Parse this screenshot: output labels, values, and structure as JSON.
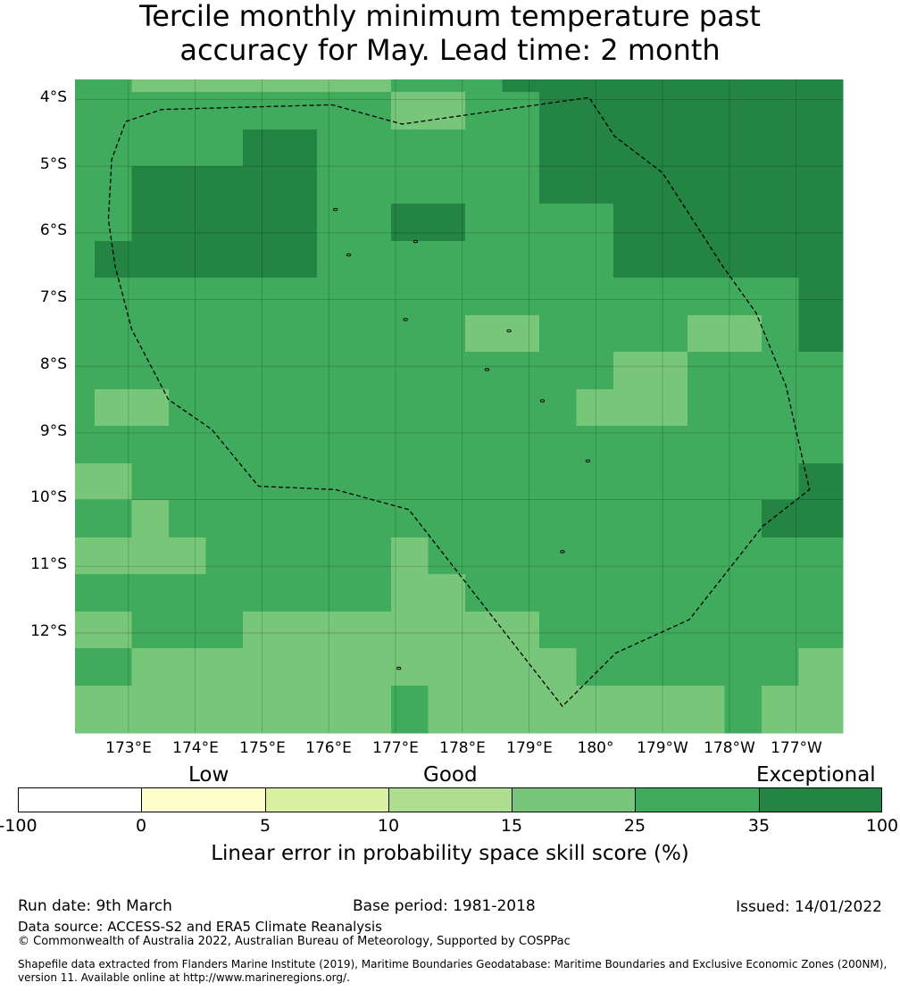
{
  "title": {
    "line1": "Tercile monthly minimum temperature past",
    "line2": "accuracy for May. Lead time: 2 month"
  },
  "map": {
    "lat_labels": [
      "4°S",
      "5°S",
      "6°S",
      "7°S",
      "8°S",
      "9°S",
      "10°S",
      "11°S",
      "12°S"
    ],
    "lon_labels": [
      "173°E",
      "174°E",
      "175°E",
      "176°E",
      "177°E",
      "178°E",
      "179°E",
      "180°",
      "179°W",
      "178°W",
      "177°W"
    ],
    "extent_lon": [
      172.2,
      183.7
    ],
    "extent_lat": [
      -3.7,
      -13.5
    ],
    "grid_values": [
      [
        25,
        25,
        15,
        15,
        15,
        15,
        15,
        15,
        15,
        25,
        25,
        25,
        35,
        35,
        35,
        35,
        35,
        35,
        35,
        35,
        35
      ],
      [
        25,
        25,
        25,
        25,
        25,
        25,
        25,
        25,
        25,
        15,
        15,
        25,
        25,
        35,
        35,
        35,
        35,
        35,
        35,
        35,
        35
      ],
      [
        25,
        25,
        25,
        25,
        25,
        35,
        35,
        25,
        25,
        25,
        25,
        25,
        25,
        35,
        35,
        35,
        35,
        35,
        35,
        35,
        35
      ],
      [
        25,
        25,
        35,
        35,
        35,
        35,
        35,
        25,
        25,
        25,
        25,
        25,
        25,
        35,
        35,
        35,
        35,
        35,
        35,
        35,
        35
      ],
      [
        25,
        25,
        35,
        35,
        35,
        35,
        35,
        25,
        25,
        35,
        35,
        25,
        25,
        25,
        25,
        35,
        35,
        35,
        35,
        35,
        35
      ],
      [
        25,
        35,
        35,
        35,
        35,
        35,
        35,
        25,
        25,
        25,
        25,
        25,
        25,
        25,
        25,
        35,
        35,
        35,
        35,
        35,
        35
      ],
      [
        25,
        25,
        25,
        25,
        25,
        25,
        25,
        25,
        25,
        25,
        25,
        25,
        25,
        25,
        25,
        25,
        25,
        25,
        25,
        25,
        35
      ],
      [
        25,
        25,
        25,
        25,
        25,
        25,
        25,
        25,
        25,
        25,
        25,
        15,
        15,
        25,
        25,
        25,
        25,
        15,
        15,
        25,
        35
      ],
      [
        25,
        25,
        25,
        25,
        25,
        25,
        25,
        25,
        25,
        25,
        25,
        25,
        25,
        25,
        25,
        15,
        15,
        25,
        25,
        25,
        25
      ],
      [
        25,
        15,
        15,
        25,
        25,
        25,
        25,
        25,
        25,
        25,
        25,
        25,
        25,
        25,
        15,
        15,
        15,
        25,
        25,
        25,
        25
      ],
      [
        25,
        25,
        25,
        25,
        25,
        25,
        25,
        25,
        25,
        25,
        25,
        25,
        25,
        25,
        25,
        25,
        25,
        25,
        25,
        25,
        25
      ],
      [
        15,
        15,
        25,
        25,
        25,
        25,
        25,
        25,
        25,
        25,
        25,
        25,
        25,
        25,
        25,
        25,
        25,
        25,
        25,
        25,
        35
      ],
      [
        25,
        25,
        15,
        25,
        25,
        25,
        25,
        25,
        25,
        25,
        25,
        25,
        25,
        25,
        25,
        25,
        25,
        25,
        25,
        35,
        35
      ],
      [
        15,
        15,
        15,
        15,
        25,
        25,
        25,
        25,
        25,
        15,
        25,
        25,
        25,
        25,
        25,
        25,
        25,
        25,
        25,
        25,
        25
      ],
      [
        25,
        25,
        25,
        25,
        25,
        25,
        25,
        25,
        25,
        15,
        15,
        25,
        25,
        25,
        25,
        25,
        25,
        25,
        25,
        25,
        25
      ],
      [
        15,
        15,
        25,
        25,
        25,
        15,
        15,
        15,
        15,
        15,
        15,
        15,
        15,
        25,
        25,
        25,
        25,
        25,
        25,
        25,
        25
      ],
      [
        25,
        25,
        15,
        15,
        15,
        15,
        15,
        15,
        15,
        15,
        15,
        15,
        15,
        15,
        25,
        25,
        25,
        25,
        25,
        25,
        15
      ],
      [
        15,
        15,
        15,
        15,
        15,
        15,
        15,
        15,
        15,
        25,
        15,
        15,
        15,
        15,
        15,
        15,
        15,
        15,
        25,
        15,
        15
      ]
    ],
    "boundary_lonlat": [
      [
        172.96,
        -4.33
      ],
      [
        173.5,
        -4.15
      ],
      [
        176.05,
        -4.08
      ],
      [
        177.1,
        -4.37
      ],
      [
        179.9,
        -3.97
      ],
      [
        180.28,
        -4.55
      ],
      [
        181.0,
        -5.1
      ],
      [
        181.9,
        -6.5
      ],
      [
        182.4,
        -7.2
      ],
      [
        182.85,
        -8.3
      ],
      [
        183.2,
        -9.85
      ],
      [
        182.5,
        -10.4
      ],
      [
        181.4,
        -11.8
      ],
      [
        180.3,
        -12.3
      ],
      [
        179.5,
        -13.1
      ],
      [
        177.2,
        -10.15
      ],
      [
        176.1,
        -9.85
      ],
      [
        174.95,
        -9.8
      ],
      [
        174.7,
        -9.5
      ],
      [
        174.25,
        -8.95
      ],
      [
        173.6,
        -8.5
      ],
      [
        173.05,
        -7.45
      ],
      [
        172.8,
        -6.5
      ],
      [
        172.7,
        -5.8
      ],
      [
        172.75,
        -4.9
      ],
      [
        172.96,
        -4.33
      ]
    ],
    "islands_lonlat": [
      [
        176.1,
        -5.65
      ],
      [
        176.3,
        -6.33
      ],
      [
        177.3,
        -6.13
      ],
      [
        177.15,
        -7.3
      ],
      [
        178.7,
        -7.47
      ],
      [
        178.37,
        -8.05
      ],
      [
        179.2,
        -8.52
      ],
      [
        179.88,
        -9.42
      ],
      [
        179.5,
        -10.78
      ],
      [
        177.05,
        -12.53
      ]
    ]
  },
  "colorbar": {
    "category_labels": {
      "low": "Low",
      "good": "Good",
      "exceptional": "Exceptional"
    },
    "segments": [
      {
        "from": "-100",
        "to": "0",
        "color": "#ffffff"
      },
      {
        "from": "0",
        "to": "5",
        "color": "#ffffcc"
      },
      {
        "from": "5",
        "to": "10",
        "color": "#d9f0a3"
      },
      {
        "from": "10",
        "to": "15",
        "color": "#addd8e"
      },
      {
        "from": "15",
        "to": "25",
        "color": "#78c679"
      },
      {
        "from": "25",
        "to": "35",
        "color": "#41ab5d"
      },
      {
        "from": "35",
        "to": "100",
        "color": "#238443"
      }
    ],
    "ticks": [
      "-100",
      "0",
      "5",
      "10",
      "15",
      "25",
      "35",
      "100"
    ],
    "title": "Linear error in probability space skill score (%)"
  },
  "footer": {
    "run_date": "Run date: 9th March",
    "base_period": "Base period: 1981-2018",
    "issued": "Issued: 14/01/2022",
    "data_source": "Data source: ACCESS-S2 and ERA5 Climate Reanalysis",
    "copyright": "© Commonwealth of Australia 2022, Australian Bureau of Meteorology, Supported by COSPPac",
    "shapefile_line1": "Shapefile data extracted from Flanders Marine Institute (2019), Maritime Boundaries Geodatabase: Maritime Boundaries and Exclusive Economic Zones (200NM),",
    "shapefile_line2": "version 11. Available online at http://www.marineregions.org/."
  }
}
